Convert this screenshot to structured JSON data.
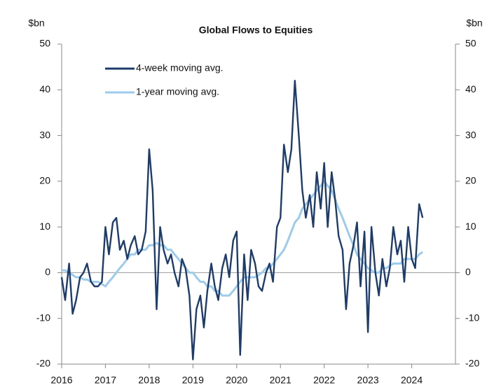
{
  "chart_data": {
    "type": "line",
    "title": "Global Flows to Equities",
    "ylabel": "$bn",
    "y2label": "$bn",
    "x": [
      2016,
      2016.08,
      2016.17,
      2016.25,
      2016.33,
      2016.42,
      2016.5,
      2016.58,
      2016.67,
      2016.75,
      2016.83,
      2016.92,
      2017,
      2017.08,
      2017.17,
      2017.25,
      2017.33,
      2017.42,
      2017.5,
      2017.58,
      2017.67,
      2017.75,
      2017.83,
      2017.92,
      2018,
      2018.08,
      2018.17,
      2018.25,
      2018.33,
      2018.42,
      2018.5,
      2018.58,
      2018.67,
      2018.75,
      2018.83,
      2018.92,
      2019,
      2019.08,
      2019.17,
      2019.25,
      2019.33,
      2019.42,
      2019.5,
      2019.58,
      2019.67,
      2019.75,
      2019.83,
      2019.92,
      2020,
      2020.08,
      2020.17,
      2020.25,
      2020.33,
      2020.42,
      2020.5,
      2020.58,
      2020.67,
      2020.75,
      2020.83,
      2020.92,
      2021,
      2021.08,
      2021.17,
      2021.25,
      2021.33,
      2021.42,
      2021.5,
      2021.58,
      2021.67,
      2021.75,
      2021.83,
      2021.92,
      2022,
      2022.08,
      2022.17,
      2022.25,
      2022.33,
      2022.42,
      2022.5,
      2022.58,
      2022.67,
      2022.75,
      2022.83,
      2022.92,
      2023,
      2023.08,
      2023.17,
      2023.25,
      2023.33,
      2023.42,
      2023.5,
      2023.58,
      2023.67,
      2023.75,
      2023.83,
      2023.92,
      2024,
      2024.08,
      2024.17,
      2024.25
    ],
    "series": [
      {
        "name": "4-week moving avg.",
        "color": "#1d3c6c",
        "values": [
          -1,
          -6,
          2,
          -9,
          -6,
          -1,
          0,
          2,
          -2,
          -3,
          -3,
          -2,
          10,
          4,
          11,
          12,
          5,
          7,
          3,
          6,
          8,
          4,
          5,
          9,
          27,
          18,
          -8,
          10,
          5,
          2,
          4,
          0,
          -3,
          3,
          1,
          -5,
          -19,
          -8,
          -5,
          -12,
          -4,
          2,
          -3,
          -6,
          1,
          4,
          -1,
          7,
          9,
          -18,
          4,
          -6,
          5,
          2,
          -3,
          -4,
          0,
          2,
          -2,
          10,
          12,
          28,
          22,
          27,
          42,
          30,
          18,
          12,
          17,
          10,
          22,
          14,
          24,
          10,
          22,
          16,
          8,
          5,
          -8,
          2,
          6,
          11,
          -3,
          9,
          -13,
          10,
          0,
          -5,
          3,
          -3,
          1,
          10,
          4,
          7,
          -2,
          10,
          3,
          1,
          15,
          12
        ]
      },
      {
        "name": "1-year moving avg.",
        "color": "#9ccbec",
        "values": [
          0.5,
          0.5,
          0,
          -0.5,
          -1,
          -1,
          -1.5,
          -1.5,
          -2,
          -2,
          -2,
          -2.5,
          -3,
          -2,
          -1,
          0,
          1,
          2,
          3,
          4,
          4,
          5,
          5,
          5,
          6,
          6,
          6.5,
          6,
          6,
          5,
          5,
          4,
          3,
          2,
          1,
          0,
          0,
          -1,
          -2,
          -2,
          -3,
          -3,
          -4,
          -4,
          -5,
          -5,
          -5,
          -4,
          -3,
          -2,
          -1,
          -1,
          -1,
          -1,
          -0.5,
          0,
          1,
          1,
          2,
          3,
          4,
          5,
          7,
          9,
          11,
          12,
          14,
          15,
          16,
          17,
          18,
          19,
          20,
          19,
          18,
          16,
          14,
          12,
          10,
          8,
          6,
          4,
          3,
          2,
          1,
          0.5,
          0,
          0,
          1,
          1,
          1.5,
          2,
          2,
          2,
          3,
          3,
          3,
          3,
          4,
          4.5
        ]
      }
    ],
    "xlim": [
      2016,
      2025
    ],
    "xticks": [
      2016,
      2017,
      2018,
      2019,
      2020,
      2021,
      2022,
      2023,
      2024
    ],
    "ylim": [
      -20,
      50
    ],
    "yticks": [
      -20,
      -10,
      0,
      10,
      20,
      30,
      40,
      50
    ],
    "y2lim": [
      -20,
      50
    ],
    "y2ticks": [
      -20,
      -10,
      0,
      10,
      20,
      30,
      40,
      50
    ],
    "zero_line": true,
    "legend": "upper left"
  }
}
